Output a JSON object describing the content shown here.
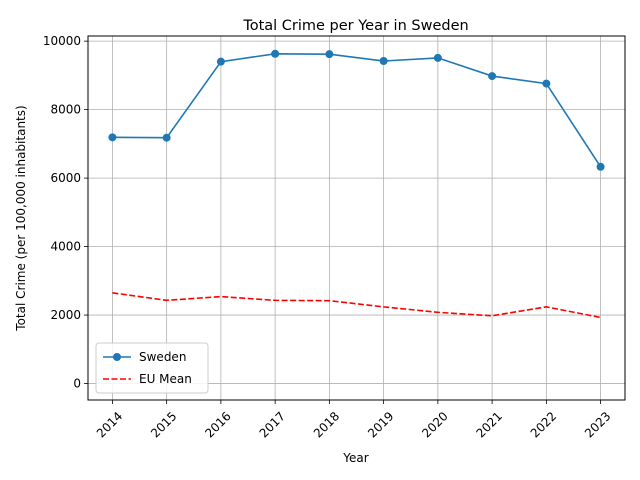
{
  "chart_data": {
    "type": "line",
    "title": "Total Crime per Year in Sweden",
    "xlabel": "Year",
    "ylabel": "Total Crime (per 100,000 inhabitants)",
    "x": [
      "2014",
      "2015",
      "2016",
      "2017",
      "2018",
      "2019",
      "2020",
      "2021",
      "2022",
      "2023"
    ],
    "ylim": [
      -480,
      10150
    ],
    "yticks": [
      0,
      2000,
      4000,
      6000,
      8000,
      10000
    ],
    "grid": true,
    "legend_position": "lower-left",
    "series": [
      {
        "name": "Sweden",
        "values": [
          7190,
          7180,
          9400,
          9630,
          9620,
          9420,
          9510,
          8980,
          8760,
          6330
        ],
        "color": "#1f77b4",
        "style": "solid",
        "marker": "circle"
      },
      {
        "name": "EU Mean",
        "values": [
          2650,
          2430,
          2540,
          2430,
          2420,
          2240,
          2080,
          1980,
          2240,
          1930
        ],
        "color": "#ff0000",
        "style": "dashed",
        "marker": "none"
      }
    ]
  }
}
